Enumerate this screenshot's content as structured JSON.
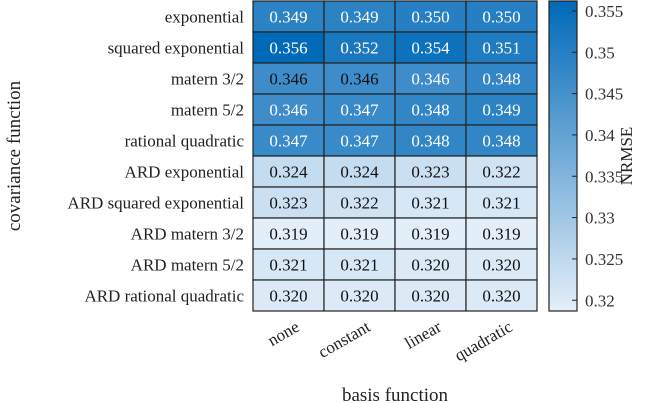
{
  "chart_data": {
    "type": "heatmap",
    "title": "",
    "xlabel": "basis function",
    "ylabel": "covariance function",
    "colorbar_label": "NRMSE",
    "x_categories": [
      "none",
      "constant",
      "linear",
      "quadratic"
    ],
    "y_categories": [
      "exponential",
      "squared exponential",
      "matern 3/2",
      "matern 5/2",
      "rational quadratic",
      "ARD exponential",
      "ARD squared exponential",
      "ARD matern 3/2",
      "ARD matern 5/2",
      "ARD rational quadratic"
    ],
    "values": [
      [
        0.349,
        0.349,
        0.35,
        0.35
      ],
      [
        0.356,
        0.352,
        0.354,
        0.351
      ],
      [
        0.346,
        0.346,
        0.346,
        0.348
      ],
      [
        0.346,
        0.347,
        0.348,
        0.349
      ],
      [
        0.347,
        0.347,
        0.348,
        0.348
      ],
      [
        0.324,
        0.324,
        0.323,
        0.322
      ],
      [
        0.323,
        0.322,
        0.321,
        0.321
      ],
      [
        0.319,
        0.319,
        0.319,
        0.319
      ],
      [
        0.321,
        0.321,
        0.32,
        0.32
      ],
      [
        0.32,
        0.32,
        0.32,
        0.32
      ]
    ],
    "value_labels": [
      [
        "0.349",
        "0.349",
        "0.350",
        "0.350"
      ],
      [
        "0.356",
        "0.352",
        "0.354",
        "0.351"
      ],
      [
        "0.346",
        "0.346",
        "0.346",
        "0.348"
      ],
      [
        "0.346",
        "0.347",
        "0.348",
        "0.349"
      ],
      [
        "0.347",
        "0.347",
        "0.348",
        "0.348"
      ],
      [
        "0.324",
        "0.324",
        "0.323",
        "0.322"
      ],
      [
        "0.323",
        "0.322",
        "0.321",
        "0.321"
      ],
      [
        "0.319",
        "0.319",
        "0.319",
        "0.319"
      ],
      [
        "0.321",
        "0.321",
        "0.320",
        "0.320"
      ],
      [
        "0.320",
        "0.320",
        "0.320",
        "0.320"
      ]
    ],
    "dark_label_cells": [
      [
        2,
        0
      ],
      [
        2,
        1
      ]
    ],
    "color_range": [
      0.3187,
      0.3562
    ],
    "colorbar_ticks": [
      0.32,
      0.325,
      0.33,
      0.335,
      0.34,
      0.345,
      0.35,
      0.355
    ],
    "colorbar_tick_labels": [
      "0.32",
      "0.325",
      "0.33",
      "0.335",
      "0.34",
      "0.345",
      "0.35",
      "0.355"
    ],
    "colormap": {
      "low": "#e4eff9",
      "high": "#0069b8"
    },
    "legend": "right"
  }
}
